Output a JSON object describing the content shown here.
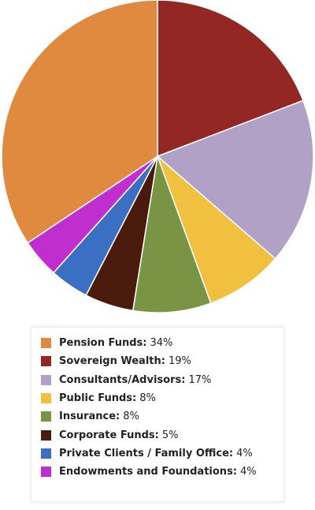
{
  "chart_data": {
    "type": "pie",
    "legend_position": "bottom",
    "slices": [
      {
        "label": "Pension Funds:",
        "value": 34,
        "value_text": "34%",
        "color": "#e08a40"
      },
      {
        "label": "Sovereign Wealth:",
        "value": 19,
        "value_text": "19%",
        "color": "#922724"
      },
      {
        "label": "Consultants/Advisors:",
        "value": 17,
        "value_text": "17%",
        "color": "#b2a1c7"
      },
      {
        "label": "Public Funds:",
        "value": 8,
        "value_text": "8%",
        "color": "#f2c03f"
      },
      {
        "label": "Insurance:",
        "value": 8,
        "value_text": "8%",
        "color": "#7a9446"
      },
      {
        "label": "Corporate Funds:",
        "value": 5,
        "value_text": "5%",
        "color": "#4a1a0c"
      },
      {
        "label": "Private Clients / Family Office:",
        "value": 4,
        "value_text": "4%",
        "color": "#3a6fc4"
      },
      {
        "label": "Endowments and Foundations:",
        "value": 4,
        "value_text": "4%",
        "color": "#c02ed0"
      }
    ]
  }
}
